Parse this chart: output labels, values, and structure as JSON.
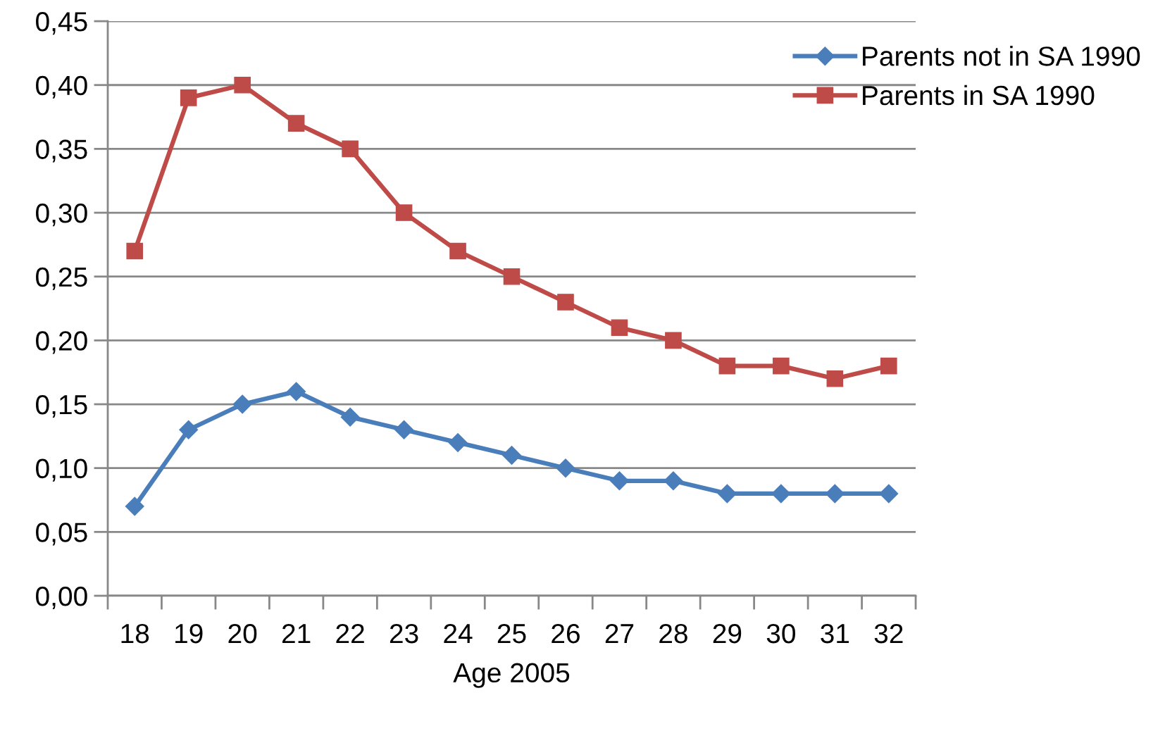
{
  "chart_data": {
    "type": "line",
    "xlabel": "Age 2005",
    "categories": [
      "18",
      "19",
      "20",
      "21",
      "22",
      "23",
      "24",
      "25",
      "26",
      "27",
      "28",
      "29",
      "30",
      "31",
      "32"
    ],
    "series": [
      {
        "name": "Parents not in SA 1990",
        "color": "#4a7ebb",
        "marker": "diamond",
        "values": [
          0.07,
          0.13,
          0.15,
          0.16,
          0.14,
          0.13,
          0.12,
          0.11,
          0.1,
          0.09,
          0.09,
          0.08,
          0.08,
          0.08,
          0.08
        ]
      },
      {
        "name": "Parents in SA 1990",
        "color": "#be4b48",
        "marker": "square",
        "values": [
          0.27,
          0.39,
          0.4,
          0.37,
          0.35,
          0.3,
          0.27,
          0.25,
          0.23,
          0.21,
          0.2,
          0.18,
          0.18,
          0.17,
          0.18
        ]
      }
    ],
    "ylim": [
      0,
      0.45
    ],
    "yticks": [
      {
        "value": 0,
        "label": "0,00"
      },
      {
        "value": 0.05,
        "label": "0,05"
      },
      {
        "value": 0.1,
        "label": "0,10"
      },
      {
        "value": 0.15,
        "label": "0,15"
      },
      {
        "value": 0.2,
        "label": "0,20"
      },
      {
        "value": 0.25,
        "label": "0,25"
      },
      {
        "value": 0.3,
        "label": "0,30"
      },
      {
        "value": 0.35,
        "label": "0,35"
      },
      {
        "value": 0.4,
        "label": "0,40"
      },
      {
        "value": 0.45,
        "label": "0,45"
      }
    ],
    "grid": "y",
    "legend": "top right",
    "line_style": "solid"
  }
}
